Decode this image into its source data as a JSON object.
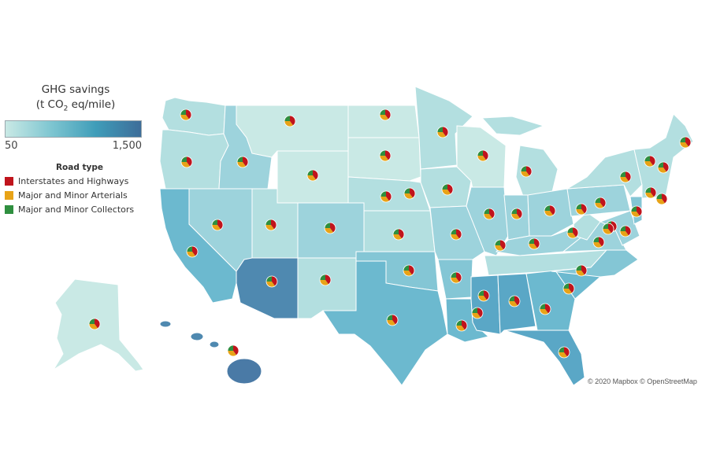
{
  "legend": {
    "title_line1": "GHG savings",
    "title_line2_prefix": "(t CO",
    "title_line2_sub": "2",
    "title_line2_suffix": " eq/mile)",
    "scale_min_label": "50",
    "scale_max_label": "1,500",
    "scale_range": [
      50,
      1500
    ],
    "gradient_colors": [
      "#c9e9e5",
      "#7fc6d1",
      "#3f9db9",
      "#3d6d99"
    ],
    "road_type_title": "Road type",
    "road_types": [
      {
        "name": "Interstates and Highways",
        "color": "#c0141c"
      },
      {
        "name": "Major and Minor Arterials",
        "color": "#e8a317"
      },
      {
        "name": "Major and Minor Collectors",
        "color": "#2f8f3f"
      }
    ]
  },
  "attribution": "© 2020 Mapbox © OpenStreetMap",
  "colors": {
    "c1": "#c9e9e5",
    "c2": "#b3dfe0",
    "c3": "#9dd3dc",
    "c4": "#84c6d5",
    "c5": "#6cb9cf",
    "c6": "#5aa7c6",
    "c7": "#4f89b0",
    "c8": "#4a7aa6"
  },
  "pie_shares": [
    0.4,
    0.35,
    0.25
  ]
}
